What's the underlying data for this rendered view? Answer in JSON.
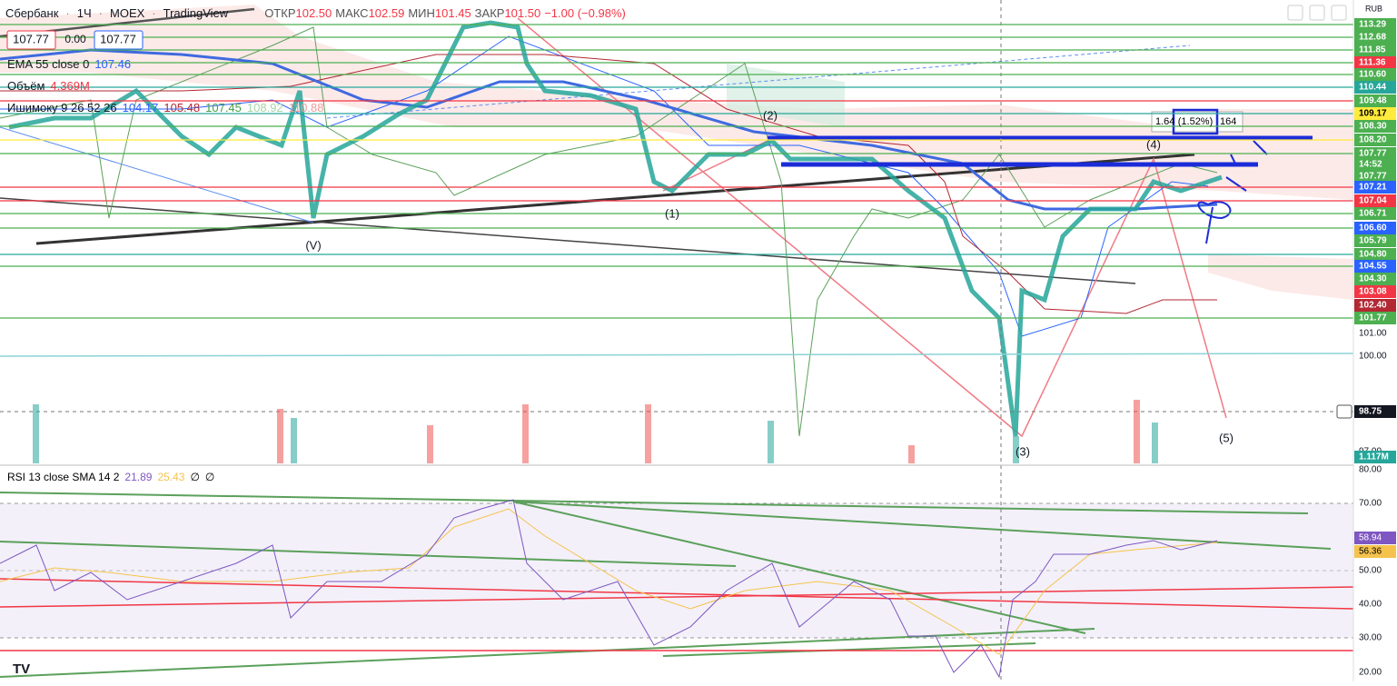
{
  "header": {
    "symbol": "Сбербанк",
    "interval": "1Ч",
    "exchange": "MOEX",
    "source": "TradingView",
    "open_label": "ОТКР",
    "open": "102.50",
    "high_label": "МАКС",
    "high": "102.59",
    "low_label": "МИН",
    "low": "101.45",
    "close_label": "ЗАКР",
    "close": "101.50",
    "change": "−1.00 (−0.98%)"
  },
  "quote": {
    "bid": "107.77",
    "spread": "0.00",
    "ask": "107.77"
  },
  "indicators": {
    "ema_label": "EMA 55 close 0",
    "ema_value": "107.46",
    "volume_label": "Объём",
    "volume_value": "4.369M",
    "ichimoku_label": "Ишимоку 9 26 52 26",
    "ichimoku_values": [
      "104.17",
      "105.48",
      "107.45",
      "108.92",
      "110.88"
    ]
  },
  "price_axis": {
    "currency": "RUB",
    "labels": [
      "113.29",
      "112.68",
      "111.85",
      "111.36",
      "110.60",
      "110.44",
      "109.48",
      "109.17",
      "108.30",
      "108.20",
      "107.77",
      "14:52",
      "107.77",
      "107.21",
      "107.04",
      "106.71",
      "106.60",
      "105.79",
      "104.80",
      "104.55",
      "104.30",
      "103.08",
      "102.40",
      "101.77",
      "101.00",
      "100.00",
      "98.75",
      "97.00",
      "1.117M"
    ]
  },
  "measure": {
    "left": "1.64",
    "center": "(1.52%)",
    "right": "164"
  },
  "waves": [
    "(2)",
    "(1)",
    "(V)",
    "(3)",
    "(4)",
    "(5)"
  ],
  "rsi": {
    "label": "RSI 13 close SMA 14 2",
    "values": [
      "21.89",
      "25.43",
      "∅",
      "∅"
    ],
    "axis": [
      "80.00",
      "70.00",
      "58.94",
      "56.36",
      "50.00",
      "40.00",
      "30.00",
      "20.00"
    ]
  }
}
